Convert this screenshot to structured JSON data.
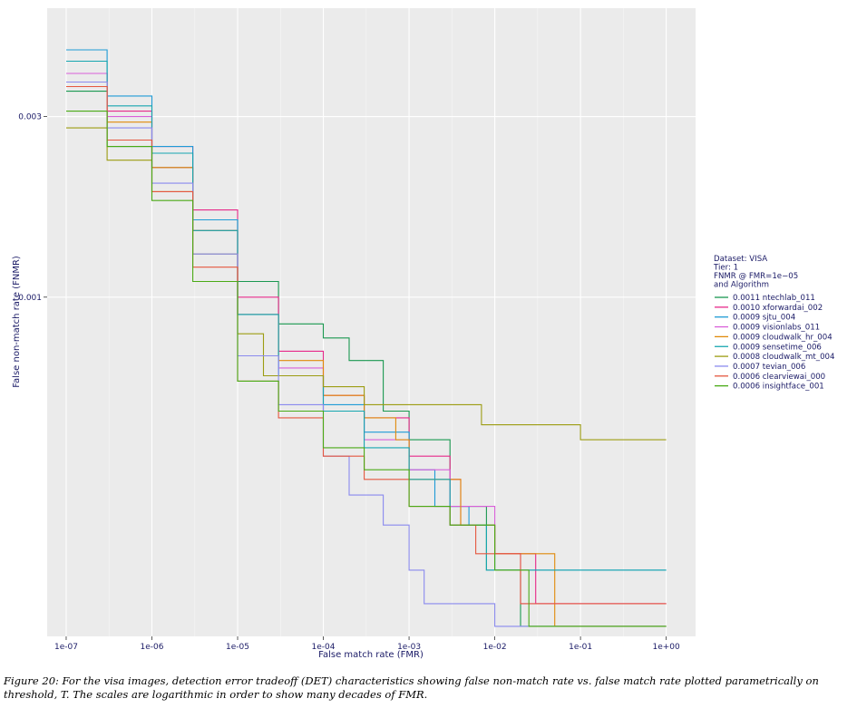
{
  "chart_data": {
    "type": "line",
    "xlabel": "False match rate (FMR)",
    "ylabel": "False non-match rate (FNMR)",
    "x_scale": "log",
    "y_scale": "log",
    "xlim": [
      6e-08,
      2.2
    ],
    "ylim": [
      0.000127,
      0.0058
    ],
    "x_ticks": [
      1e-07,
      1e-06,
      1e-05,
      0.0001,
      0.001,
      0.01,
      0.1,
      1
    ],
    "x_tick_labels": [
      "1e-07",
      "1e-06",
      "1e-05",
      "1e-04",
      "1e-03",
      "1e-02",
      "1e-01",
      "1e+00"
    ],
    "y_ticks": [
      0.001,
      0.003
    ],
    "y_tick_labels": [
      "0.001",
      "0.003"
    ],
    "grid": true,
    "legend_position": "right",
    "legend_title": [
      "Dataset: VISA",
      "Tier: 1",
      "FNMR @ FMR=1e−05",
      "and Algorithm"
    ],
    "series": [
      {
        "name": "ntechlab_011",
        "value": "0.0011",
        "color": "#1a9850",
        "points": [
          [
            1e-07,
            0.0035
          ],
          [
            3e-07,
            0.0025
          ],
          [
            1e-06,
            0.0022
          ],
          [
            3e-06,
            0.0016
          ],
          [
            1e-05,
            0.0011
          ],
          [
            3e-05,
            0.00085
          ],
          [
            0.0001,
            0.00078
          ],
          [
            0.0002,
            0.00068
          ],
          [
            0.0005,
            0.0005
          ],
          [
            0.001,
            0.00042
          ],
          [
            0.002,
            0.00042
          ],
          [
            0.003,
            0.00028
          ],
          [
            0.008,
            0.00028
          ],
          [
            0.008,
            0.00019
          ],
          [
            0.02,
            0.00019
          ],
          [
            0.02,
            0.000135
          ],
          [
            1,
            0.000135
          ]
        ]
      },
      {
        "name": "xforwardai_002",
        "value": "0.0010",
        "color": "#e7298a",
        "points": [
          [
            1e-07,
            0.0039
          ],
          [
            3e-07,
            0.0031
          ],
          [
            1e-06,
            0.0025
          ],
          [
            3e-06,
            0.0017
          ],
          [
            1e-05,
            0.001
          ],
          [
            3e-05,
            0.00072
          ],
          [
            0.0001,
            0.00055
          ],
          [
            0.0003,
            0.00048
          ],
          [
            0.001,
            0.00038
          ],
          [
            0.003,
            0.00033
          ],
          [
            0.004,
            0.00025
          ],
          [
            0.01,
            0.00021
          ],
          [
            0.03,
            0.00021
          ],
          [
            0.03,
            0.000155
          ],
          [
            1,
            0.000155
          ]
        ]
      },
      {
        "name": "sjtu_004",
        "value": "0.0009",
        "color": "#1f9bd6",
        "points": [
          [
            1e-07,
            0.0045
          ],
          [
            3e-07,
            0.0034
          ],
          [
            1e-06,
            0.0025
          ],
          [
            3e-06,
            0.0016
          ],
          [
            1e-05,
            0.0009
          ],
          [
            3e-05,
            0.00062
          ],
          [
            0.0001,
            0.00052
          ],
          [
            0.0003,
            0.00044
          ],
          [
            0.001,
            0.00035
          ],
          [
            0.002,
            0.00028
          ],
          [
            0.005,
            0.00025
          ],
          [
            0.01,
            0.00019
          ],
          [
            1,
            0.00019
          ]
        ]
      },
      {
        "name": "visionlabs_011",
        "value": "0.0009",
        "color": "#d95fd9",
        "points": [
          [
            1e-07,
            0.0039
          ],
          [
            3e-07,
            0.003
          ],
          [
            1e-06,
            0.0022
          ],
          [
            3e-06,
            0.0015
          ],
          [
            1e-05,
            0.0009
          ],
          [
            3e-05,
            0.00065
          ],
          [
            0.0001,
            0.0005
          ],
          [
            0.0003,
            0.00042
          ],
          [
            0.001,
            0.00035
          ],
          [
            0.003,
            0.00028
          ],
          [
            0.01,
            0.00021
          ],
          [
            0.02,
            0.00021
          ],
          [
            0.02,
            0.000155
          ],
          [
            1,
            0.000155
          ]
        ]
      },
      {
        "name": "cloudwalk_hr_004",
        "value": "0.0009",
        "color": "#e08a0b",
        "points": [
          [
            1e-07,
            0.0037
          ],
          [
            3e-07,
            0.0029
          ],
          [
            1e-06,
            0.0022
          ],
          [
            3e-06,
            0.0015
          ],
          [
            1e-05,
            0.0009
          ],
          [
            3e-05,
            0.00068
          ],
          [
            0.0001,
            0.00055
          ],
          [
            0.0003,
            0.00048
          ],
          [
            0.0007,
            0.00042
          ],
          [
            0.001,
            0.00033
          ],
          [
            0.004,
            0.00025
          ],
          [
            0.01,
            0.00021
          ],
          [
            0.05,
            0.00021
          ],
          [
            0.05,
            0.000135
          ],
          [
            1,
            0.000135
          ]
        ]
      },
      {
        "name": "sensetime_006",
        "value": "0.0009",
        "color": "#16a6b0",
        "points": [
          [
            1e-07,
            0.0042
          ],
          [
            3e-07,
            0.0032
          ],
          [
            1e-06,
            0.0024
          ],
          [
            3e-06,
            0.0015
          ],
          [
            1e-05,
            0.0009
          ],
          [
            3e-05,
            0.00062
          ],
          [
            0.0001,
            0.0005
          ],
          [
            0.0003,
            0.0004
          ],
          [
            0.001,
            0.00033
          ],
          [
            0.003,
            0.00025
          ],
          [
            0.008,
            0.00019
          ],
          [
            1,
            0.00019
          ]
        ]
      },
      {
        "name": "cloudwalk_mt_004",
        "value": "0.0008",
        "color": "#9c9c12",
        "points": [
          [
            1e-07,
            0.0028
          ],
          [
            3e-07,
            0.0023
          ],
          [
            1e-06,
            0.0019
          ],
          [
            3e-06,
            0.0013
          ],
          [
            1e-05,
            0.0008
          ],
          [
            2e-05,
            0.00062
          ],
          [
            0.0001,
            0.00058
          ],
          [
            0.0003,
            0.00052
          ],
          [
            0.001,
            0.00052
          ],
          [
            0.007,
            0.00052
          ],
          [
            0.007,
            0.00046
          ],
          [
            0.1,
            0.00046
          ],
          [
            0.1,
            0.00042
          ],
          [
            1,
            0.00042
          ]
        ]
      },
      {
        "name": "tevian_006",
        "value": "0.0007",
        "color": "#8a8aee",
        "points": [
          [
            1e-07,
            0.0037
          ],
          [
            3e-07,
            0.0028
          ],
          [
            1e-06,
            0.002
          ],
          [
            3e-06,
            0.0013
          ],
          [
            1e-05,
            0.0007
          ],
          [
            3e-05,
            0.00052
          ],
          [
            0.0001,
            0.00038
          ],
          [
            0.0002,
            0.0003
          ],
          [
            0.0005,
            0.00025
          ],
          [
            0.001,
            0.00019
          ],
          [
            0.0015,
            0.00019
          ],
          [
            0.0015,
            0.000155
          ],
          [
            0.01,
            0.000155
          ],
          [
            0.01,
            0.000135
          ],
          [
            1,
            0.000135
          ]
        ]
      },
      {
        "name": "clearviewai_000",
        "value": "0.0006",
        "color": "#e5573f",
        "points": [
          [
            1e-07,
            0.0036
          ],
          [
            3e-07,
            0.0026
          ],
          [
            1e-06,
            0.0019
          ],
          [
            3e-06,
            0.0012
          ],
          [
            1e-05,
            0.0006
          ],
          [
            3e-05,
            0.00048
          ],
          [
            0.0001,
            0.00038
          ],
          [
            0.0003,
            0.00033
          ],
          [
            0.001,
            0.00028
          ],
          [
            0.003,
            0.00025
          ],
          [
            0.006,
            0.00021
          ],
          [
            0.02,
            0.00021
          ],
          [
            0.02,
            0.000155
          ],
          [
            1,
            0.000155
          ]
        ]
      },
      {
        "name": "insightface_001",
        "value": "0.0006",
        "color": "#4aaa16",
        "points": [
          [
            1e-07,
            0.0031
          ],
          [
            3e-07,
            0.0025
          ],
          [
            1e-06,
            0.0018
          ],
          [
            3e-06,
            0.0011
          ],
          [
            1e-05,
            0.0006
          ],
          [
            3e-05,
            0.0005
          ],
          [
            0.0001,
            0.0004
          ],
          [
            0.0003,
            0.00035
          ],
          [
            0.001,
            0.00028
          ],
          [
            0.003,
            0.00025
          ],
          [
            0.01,
            0.00019
          ],
          [
            0.025,
            0.00019
          ],
          [
            0.025,
            0.000135
          ],
          [
            1,
            0.000135
          ]
        ]
      }
    ]
  },
  "caption": {
    "text": "Figure 20:  For the visa images, detection error tradeoff (DET) characteristics showing false non-match rate vs. false match rate plotted parametrically on threshold, T. The scales are logarithmic in order to show many decades of FMR."
  }
}
